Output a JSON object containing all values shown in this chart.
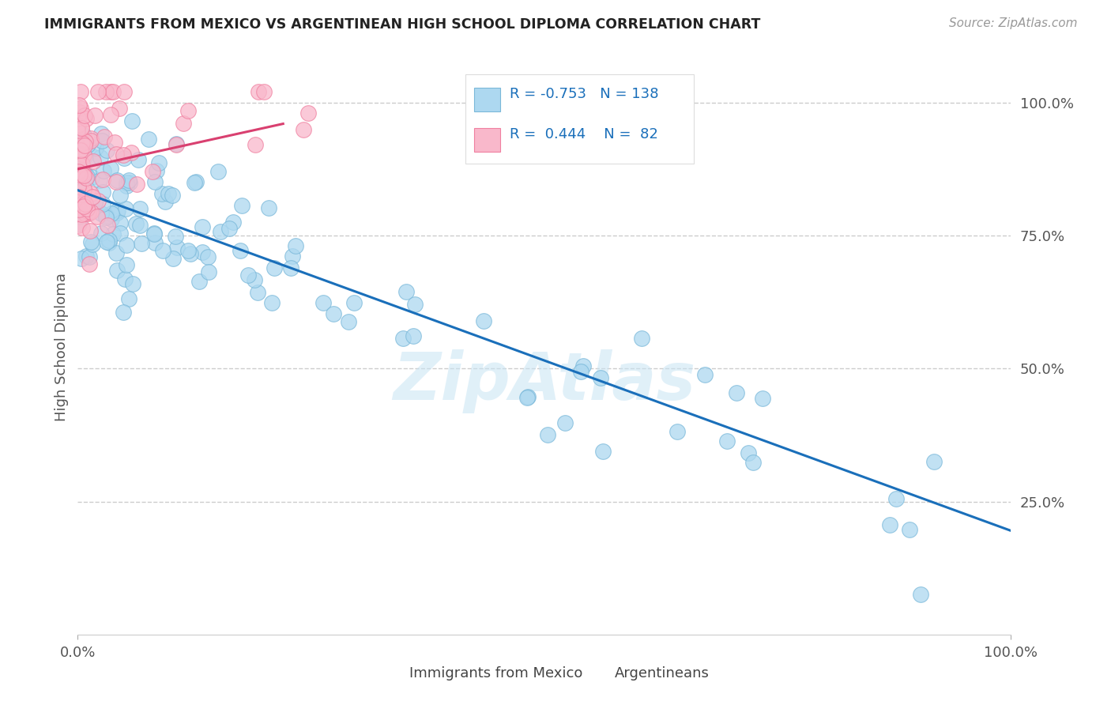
{
  "title": "IMMIGRANTS FROM MEXICO VS ARGENTINEAN HIGH SCHOOL DIPLOMA CORRELATION CHART",
  "source": "Source: ZipAtlas.com",
  "ylabel": "High School Diploma",
  "legend_label1": "Immigrants from Mexico",
  "legend_label2": "Argentineans",
  "r1": "-0.753",
  "n1": "138",
  "r2": "0.444",
  "n2": "82",
  "ytick_labels": [
    "100.0%",
    "75.0%",
    "50.0%",
    "25.0%"
  ],
  "ytick_values": [
    1.0,
    0.75,
    0.5,
    0.25
  ],
  "blue_fill": "#add8f0",
  "pink_fill": "#f9b8cb",
  "blue_edge": "#7ab8d9",
  "pink_edge": "#f080a0",
  "blue_line_color": "#1a6fba",
  "pink_line_color": "#d94070",
  "watermark": "ZipAtlas",
  "blue_line_x0": 0.0,
  "blue_line_x1": 1.0,
  "blue_line_y0": 0.835,
  "blue_line_y1": 0.195,
  "pink_line_x0": 0.0,
  "pink_line_x1": 0.22,
  "pink_line_y0": 0.875,
  "pink_line_y1": 0.96,
  "xmin": 0.0,
  "xmax": 1.0,
  "ymin": 0.0,
  "ymax": 1.08
}
